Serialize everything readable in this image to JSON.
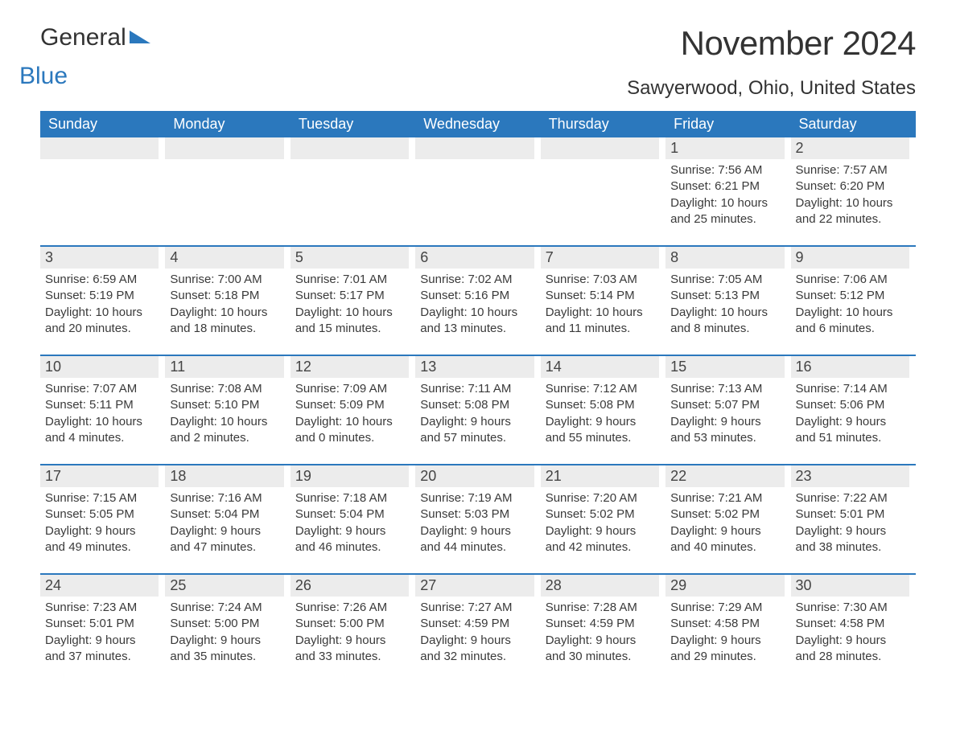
{
  "logo": {
    "text_general": "General",
    "text_blue": "Blue"
  },
  "title": "November 2024",
  "location": "Sawyerwood, Ohio, United States",
  "colors": {
    "header_bg": "#2b78bd",
    "header_text": "#ffffff",
    "row_separator": "#2b78bd",
    "daynum_bg": "#ececec",
    "body_text": "#3a3a3a",
    "page_bg": "#ffffff"
  },
  "layout": {
    "columns": 7,
    "weeks": 5,
    "fontsize_title": 42,
    "fontsize_location": 24,
    "fontsize_weekday": 18,
    "fontsize_daynum": 18,
    "fontsize_body": 15
  },
  "weekdays": [
    "Sunday",
    "Monday",
    "Tuesday",
    "Wednesday",
    "Thursday",
    "Friday",
    "Saturday"
  ],
  "weeks": [
    [
      null,
      null,
      null,
      null,
      null,
      {
        "n": "1",
        "sunrise": "Sunrise: 7:56 AM",
        "sunset": "Sunset: 6:21 PM",
        "daylight": "Daylight: 10 hours and 25 minutes."
      },
      {
        "n": "2",
        "sunrise": "Sunrise: 7:57 AM",
        "sunset": "Sunset: 6:20 PM",
        "daylight": "Daylight: 10 hours and 22 minutes."
      }
    ],
    [
      {
        "n": "3",
        "sunrise": "Sunrise: 6:59 AM",
        "sunset": "Sunset: 5:19 PM",
        "daylight": "Daylight: 10 hours and 20 minutes."
      },
      {
        "n": "4",
        "sunrise": "Sunrise: 7:00 AM",
        "sunset": "Sunset: 5:18 PM",
        "daylight": "Daylight: 10 hours and 18 minutes."
      },
      {
        "n": "5",
        "sunrise": "Sunrise: 7:01 AM",
        "sunset": "Sunset: 5:17 PM",
        "daylight": "Daylight: 10 hours and 15 minutes."
      },
      {
        "n": "6",
        "sunrise": "Sunrise: 7:02 AM",
        "sunset": "Sunset: 5:16 PM",
        "daylight": "Daylight: 10 hours and 13 minutes."
      },
      {
        "n": "7",
        "sunrise": "Sunrise: 7:03 AM",
        "sunset": "Sunset: 5:14 PM",
        "daylight": "Daylight: 10 hours and 11 minutes."
      },
      {
        "n": "8",
        "sunrise": "Sunrise: 7:05 AM",
        "sunset": "Sunset: 5:13 PM",
        "daylight": "Daylight: 10 hours and 8 minutes."
      },
      {
        "n": "9",
        "sunrise": "Sunrise: 7:06 AM",
        "sunset": "Sunset: 5:12 PM",
        "daylight": "Daylight: 10 hours and 6 minutes."
      }
    ],
    [
      {
        "n": "10",
        "sunrise": "Sunrise: 7:07 AM",
        "sunset": "Sunset: 5:11 PM",
        "daylight": "Daylight: 10 hours and 4 minutes."
      },
      {
        "n": "11",
        "sunrise": "Sunrise: 7:08 AM",
        "sunset": "Sunset: 5:10 PM",
        "daylight": "Daylight: 10 hours and 2 minutes."
      },
      {
        "n": "12",
        "sunrise": "Sunrise: 7:09 AM",
        "sunset": "Sunset: 5:09 PM",
        "daylight": "Daylight: 10 hours and 0 minutes."
      },
      {
        "n": "13",
        "sunrise": "Sunrise: 7:11 AM",
        "sunset": "Sunset: 5:08 PM",
        "daylight": "Daylight: 9 hours and 57 minutes."
      },
      {
        "n": "14",
        "sunrise": "Sunrise: 7:12 AM",
        "sunset": "Sunset: 5:08 PM",
        "daylight": "Daylight: 9 hours and 55 minutes."
      },
      {
        "n": "15",
        "sunrise": "Sunrise: 7:13 AM",
        "sunset": "Sunset: 5:07 PM",
        "daylight": "Daylight: 9 hours and 53 minutes."
      },
      {
        "n": "16",
        "sunrise": "Sunrise: 7:14 AM",
        "sunset": "Sunset: 5:06 PM",
        "daylight": "Daylight: 9 hours and 51 minutes."
      }
    ],
    [
      {
        "n": "17",
        "sunrise": "Sunrise: 7:15 AM",
        "sunset": "Sunset: 5:05 PM",
        "daylight": "Daylight: 9 hours and 49 minutes."
      },
      {
        "n": "18",
        "sunrise": "Sunrise: 7:16 AM",
        "sunset": "Sunset: 5:04 PM",
        "daylight": "Daylight: 9 hours and 47 minutes."
      },
      {
        "n": "19",
        "sunrise": "Sunrise: 7:18 AM",
        "sunset": "Sunset: 5:04 PM",
        "daylight": "Daylight: 9 hours and 46 minutes."
      },
      {
        "n": "20",
        "sunrise": "Sunrise: 7:19 AM",
        "sunset": "Sunset: 5:03 PM",
        "daylight": "Daylight: 9 hours and 44 minutes."
      },
      {
        "n": "21",
        "sunrise": "Sunrise: 7:20 AM",
        "sunset": "Sunset: 5:02 PM",
        "daylight": "Daylight: 9 hours and 42 minutes."
      },
      {
        "n": "22",
        "sunrise": "Sunrise: 7:21 AM",
        "sunset": "Sunset: 5:02 PM",
        "daylight": "Daylight: 9 hours and 40 minutes."
      },
      {
        "n": "23",
        "sunrise": "Sunrise: 7:22 AM",
        "sunset": "Sunset: 5:01 PM",
        "daylight": "Daylight: 9 hours and 38 minutes."
      }
    ],
    [
      {
        "n": "24",
        "sunrise": "Sunrise: 7:23 AM",
        "sunset": "Sunset: 5:01 PM",
        "daylight": "Daylight: 9 hours and 37 minutes."
      },
      {
        "n": "25",
        "sunrise": "Sunrise: 7:24 AM",
        "sunset": "Sunset: 5:00 PM",
        "daylight": "Daylight: 9 hours and 35 minutes."
      },
      {
        "n": "26",
        "sunrise": "Sunrise: 7:26 AM",
        "sunset": "Sunset: 5:00 PM",
        "daylight": "Daylight: 9 hours and 33 minutes."
      },
      {
        "n": "27",
        "sunrise": "Sunrise: 7:27 AM",
        "sunset": "Sunset: 4:59 PM",
        "daylight": "Daylight: 9 hours and 32 minutes."
      },
      {
        "n": "28",
        "sunrise": "Sunrise: 7:28 AM",
        "sunset": "Sunset: 4:59 PM",
        "daylight": "Daylight: 9 hours and 30 minutes."
      },
      {
        "n": "29",
        "sunrise": "Sunrise: 7:29 AM",
        "sunset": "Sunset: 4:58 PM",
        "daylight": "Daylight: 9 hours and 29 minutes."
      },
      {
        "n": "30",
        "sunrise": "Sunrise: 7:30 AM",
        "sunset": "Sunset: 4:58 PM",
        "daylight": "Daylight: 9 hours and 28 minutes."
      }
    ]
  ]
}
